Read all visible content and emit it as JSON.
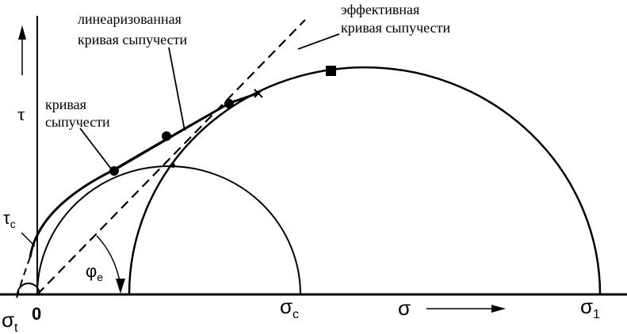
{
  "labels": {
    "linearized_line1": "линеаризованная",
    "linearized_line2": "кривая сыпучести",
    "effective_line1": "эффективная",
    "effective_line2": "кривая сыпучести",
    "yield_line1": "кривая",
    "yield_line2": "сыпучести",
    "tau_axis": "τ",
    "tau_c": "τ",
    "tau_c_sub": "c",
    "phi_e": "φ",
    "phi_e_sub": "e",
    "sigma_t": "σ",
    "sigma_t_sub": "t",
    "zero": "0",
    "sigma_c": "σ",
    "sigma_c_sub": "c",
    "sigma_axis": "σ",
    "sigma_1": "σ",
    "sigma_1_sub": "1"
  },
  "colors": {
    "ink": "#000000",
    "background": "#ffffff"
  }
}
